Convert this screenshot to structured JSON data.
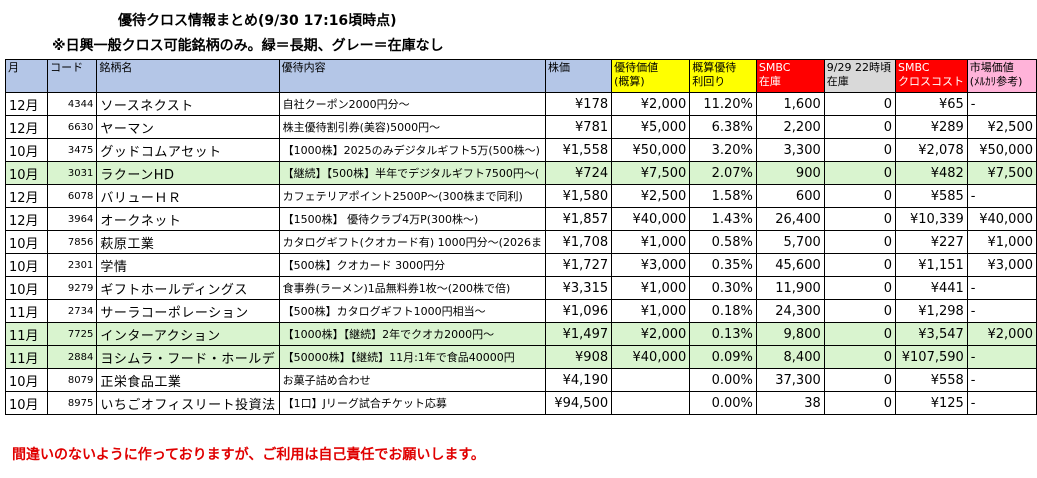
{
  "title": "優待クロス情報まとめ(9/30 17:16頃時点)",
  "subtitle": "※日興一般クロス可能銘柄のみ。緑＝長期、グレー＝在庫なし",
  "headers": {
    "month": "月",
    "code": "コード",
    "name": "銘柄名",
    "benefit": "優待内容",
    "price": "株価",
    "value_l1": "優待価値",
    "value_l2": "(概算)",
    "yield_l1": "概算優待",
    "yield_l2": "利回り",
    "smbc_l1": "SMBC",
    "smbc_l2": "在庫",
    "prev_l1": "9/29 22時頃",
    "prev_l2": "在庫",
    "cost_l1": "SMBC",
    "cost_l2": "クロスコスト",
    "market_l1": "市場価値",
    "market_l2": "(ﾒﾙｶﾘ参考)"
  },
  "colors": {
    "header_blue": "#b4c6e7",
    "header_yellow": "#ffff00",
    "header_red": "#ff0000",
    "header_gray": "#d9d9d9",
    "header_pink": "#ffb3d9",
    "long_term_green": "#d9f4cf",
    "warning_red": "#e00000"
  },
  "rows": [
    {
      "month": "12月",
      "code": "4344",
      "name": "ソースネクスト",
      "benefit": "自社クーポン2000円分～",
      "price": "¥178",
      "value": "¥2,000",
      "yield": "11.20%",
      "smbc": "1,600",
      "prev": "0",
      "cost": "¥65",
      "market": "-",
      "green": false
    },
    {
      "month": "12月",
      "code": "6630",
      "name": "ヤーマン",
      "benefit": "株主優待割引券(美容)5000円～",
      "price": "¥781",
      "value": "¥5,000",
      "yield": "6.38%",
      "smbc": "2,200",
      "prev": "0",
      "cost": "¥289",
      "market": "¥2,500",
      "green": false
    },
    {
      "month": "10月",
      "code": "3475",
      "name": "グッドコムアセット",
      "benefit": "【1000株】2025のみデジタルギフト5万(500株～)",
      "price": "¥1,558",
      "value": "¥50,000",
      "yield": "3.20%",
      "smbc": "3,300",
      "prev": "0",
      "cost": "¥2,078",
      "market": "¥50,000",
      "green": false
    },
    {
      "month": "10月",
      "code": "3031",
      "name": "ラクーンHD",
      "benefit": "【継続】【500株】半年でデジタルギフト7500円～(",
      "price": "¥724",
      "value": "¥7,500",
      "yield": "2.07%",
      "smbc": "900",
      "prev": "0",
      "cost": "¥482",
      "market": "¥7,500",
      "green": true
    },
    {
      "month": "12月",
      "code": "6078",
      "name": "バリューＨＲ",
      "benefit": "カフェテリアポイント2500P～(300株まで同利)",
      "price": "¥1,580",
      "value": "¥2,500",
      "yield": "1.58%",
      "smbc": "600",
      "prev": "0",
      "cost": "¥585",
      "market": "-",
      "green": false
    },
    {
      "month": "12月",
      "code": "3964",
      "name": "オークネット",
      "benefit": "【1500株】 優待クラブ4万P(300株～)",
      "price": "¥1,857",
      "value": "¥40,000",
      "yield": "1.43%",
      "smbc": "26,400",
      "prev": "0",
      "cost": "¥10,339",
      "market": "¥40,000",
      "green": false
    },
    {
      "month": "10月",
      "code": "7856",
      "name": "萩原工業",
      "benefit": "カタログギフト(クオカード有) 1000円分～(2026ま",
      "price": "¥1,708",
      "value": "¥1,000",
      "yield": "0.58%",
      "smbc": "5,700",
      "prev": "0",
      "cost": "¥227",
      "market": "¥1,000",
      "green": false
    },
    {
      "month": "10月",
      "code": "2301",
      "name": "学情",
      "benefit": "【500株】クオカード 3000円分",
      "price": "¥1,727",
      "value": "¥3,000",
      "yield": "0.35%",
      "smbc": "45,600",
      "prev": "0",
      "cost": "¥1,151",
      "market": "¥3,000",
      "green": false
    },
    {
      "month": "10月",
      "code": "9279",
      "name": "ギフトホールディングス",
      "benefit": "食事券(ラーメン)1品無料券1枚～(200株で倍)",
      "price": "¥3,315",
      "value": "¥1,000",
      "yield": "0.30%",
      "smbc": "11,900",
      "prev": "0",
      "cost": "¥441",
      "market": "-",
      "green": false
    },
    {
      "month": "11月",
      "code": "2734",
      "name": "サーラコーポレーション",
      "benefit": "【500株】カタログギフト1000円相当～",
      "price": "¥1,096",
      "value": "¥1,000",
      "yield": "0.18%",
      "smbc": "24,300",
      "prev": "0",
      "cost": "¥1,298",
      "market": "-",
      "green": false
    },
    {
      "month": "11月",
      "code": "7725",
      "name": "インターアクション",
      "benefit": "【1000株】【継続】2年でクオカ2000円～",
      "price": "¥1,497",
      "value": "¥2,000",
      "yield": "0.13%",
      "smbc": "9,800",
      "prev": "0",
      "cost": "¥3,547",
      "market": "¥2,000",
      "green": true
    },
    {
      "month": "11月",
      "code": "2884",
      "name": "ヨシムラ・フード・ホールデ",
      "benefit": "【50000株】【継続】11月:1年で食品40000円",
      "price": "¥908",
      "value": "¥40,000",
      "yield": "0.09%",
      "smbc": "8,400",
      "prev": "0",
      "cost": "¥107,590",
      "market": "-",
      "green": true
    },
    {
      "month": "10月",
      "code": "8079",
      "name": "正栄食品工業",
      "benefit": "お菓子詰め合わせ",
      "price": "¥4,190",
      "value": "",
      "yield": "0.00%",
      "smbc": "37,300",
      "prev": "0",
      "cost": "¥558",
      "market": "-",
      "green": false
    },
    {
      "month": "10月",
      "code": "8975",
      "name": "いちごオフィスリート投資法",
      "benefit": "【1口】Jリーグ試合チケット応募",
      "price": "¥94,500",
      "value": "",
      "yield": "0.00%",
      "smbc": "38",
      "prev": "0",
      "cost": "¥125",
      "market": "-",
      "green": false
    }
  ],
  "note": "間違いのないように作っておりますが、ご利用は自己責任でお願いします。"
}
